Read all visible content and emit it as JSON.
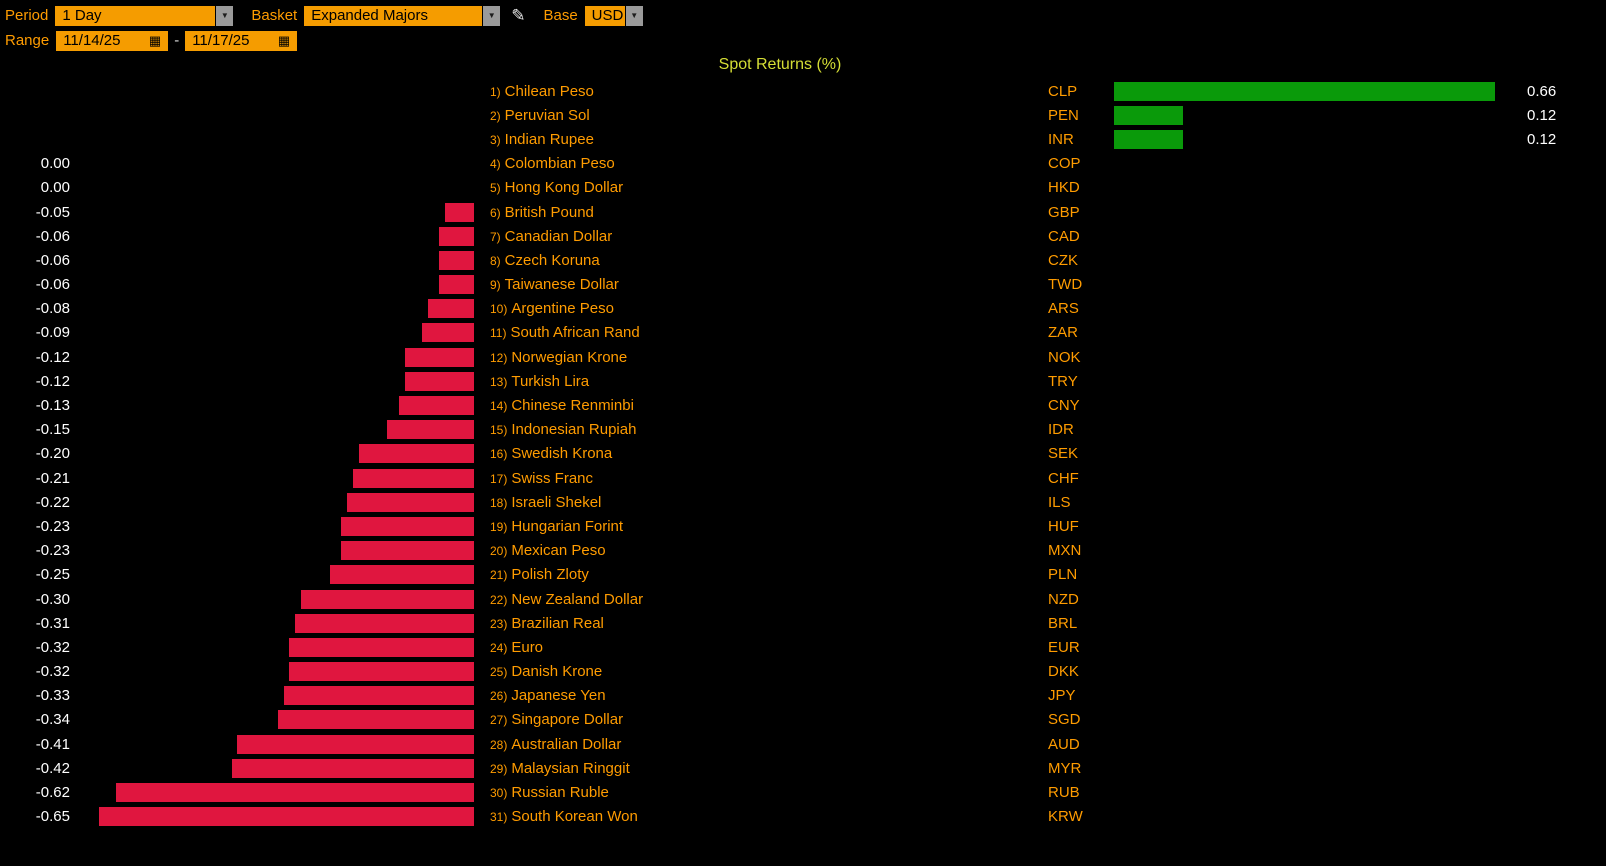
{
  "toolbar": {
    "period_label": "Period",
    "period_value": "1 Day",
    "basket_label": "Basket",
    "basket_value": "Expanded Majors",
    "base_label": "Base",
    "base_value": "USD",
    "range_label": "Range",
    "range_start": "11/14/25",
    "range_separator": "-",
    "range_end": "11/17/25"
  },
  "colors": {
    "background": "#000000",
    "amber_text": "#ff9c00",
    "field_background": "#f59c00",
    "title_text": "#d5de35",
    "value_text": "#ffffff",
    "negative_bar": "#e0163f",
    "positive_bar": "#0a9a0a"
  },
  "chart_data": {
    "type": "bar",
    "orientation": "horizontal",
    "title": "Spot Returns (%)",
    "value_unit": "%",
    "axis_max_abs": 0.7,
    "legend": "none",
    "grid": false,
    "rows": [
      {
        "rank": 1,
        "name": "Chilean Peso",
        "code": "CLP",
        "value": 0.66,
        "display": "0.66"
      },
      {
        "rank": 2,
        "name": "Peruvian Sol",
        "code": "PEN",
        "value": 0.12,
        "display": "0.12"
      },
      {
        "rank": 3,
        "name": "Indian Rupee",
        "code": "INR",
        "value": 0.12,
        "display": "0.12"
      },
      {
        "rank": 4,
        "name": "Colombian Peso",
        "code": "COP",
        "value": 0.0,
        "display": "0.00"
      },
      {
        "rank": 5,
        "name": "Hong Kong Dollar",
        "code": "HKD",
        "value": 0.0,
        "display": "0.00"
      },
      {
        "rank": 6,
        "name": "British Pound",
        "code": "GBP",
        "value": -0.05,
        "display": "-0.05"
      },
      {
        "rank": 7,
        "name": "Canadian Dollar",
        "code": "CAD",
        "value": -0.06,
        "display": "-0.06"
      },
      {
        "rank": 8,
        "name": "Czech Koruna",
        "code": "CZK",
        "value": -0.06,
        "display": "-0.06"
      },
      {
        "rank": 9,
        "name": "Taiwanese Dollar",
        "code": "TWD",
        "value": -0.06,
        "display": "-0.06"
      },
      {
        "rank": 10,
        "name": "Argentine Peso",
        "code": "ARS",
        "value": -0.08,
        "display": "-0.08"
      },
      {
        "rank": 11,
        "name": "South African Rand",
        "code": "ZAR",
        "value": -0.09,
        "display": "-0.09"
      },
      {
        "rank": 12,
        "name": "Norwegian Krone",
        "code": "NOK",
        "value": -0.12,
        "display": "-0.12"
      },
      {
        "rank": 13,
        "name": "Turkish Lira",
        "code": "TRY",
        "value": -0.12,
        "display": "-0.12"
      },
      {
        "rank": 14,
        "name": "Chinese Renminbi",
        "code": "CNY",
        "value": -0.13,
        "display": "-0.13"
      },
      {
        "rank": 15,
        "name": "Indonesian Rupiah",
        "code": "IDR",
        "value": -0.15,
        "display": "-0.15"
      },
      {
        "rank": 16,
        "name": "Swedish Krona",
        "code": "SEK",
        "value": -0.2,
        "display": "-0.20"
      },
      {
        "rank": 17,
        "name": "Swiss Franc",
        "code": "CHF",
        "value": -0.21,
        "display": "-0.21"
      },
      {
        "rank": 18,
        "name": "Israeli Shekel",
        "code": "ILS",
        "value": -0.22,
        "display": "-0.22"
      },
      {
        "rank": 19,
        "name": "Hungarian Forint",
        "code": "HUF",
        "value": -0.23,
        "display": "-0.23"
      },
      {
        "rank": 20,
        "name": "Mexican Peso",
        "code": "MXN",
        "value": -0.23,
        "display": "-0.23"
      },
      {
        "rank": 21,
        "name": "Polish Zloty",
        "code": "PLN",
        "value": -0.25,
        "display": "-0.25"
      },
      {
        "rank": 22,
        "name": "New Zealand Dollar",
        "code": "NZD",
        "value": -0.3,
        "display": "-0.30"
      },
      {
        "rank": 23,
        "name": "Brazilian Real",
        "code": "BRL",
        "value": -0.31,
        "display": "-0.31"
      },
      {
        "rank": 24,
        "name": "Euro",
        "code": "EUR",
        "value": -0.32,
        "display": "-0.32"
      },
      {
        "rank": 25,
        "name": "Danish Krone",
        "code": "DKK",
        "value": -0.32,
        "display": "-0.32"
      },
      {
        "rank": 26,
        "name": "Japanese Yen",
        "code": "JPY",
        "value": -0.33,
        "display": "-0.33"
      },
      {
        "rank": 27,
        "name": "Singapore Dollar",
        "code": "SGD",
        "value": -0.34,
        "display": "-0.34"
      },
      {
        "rank": 28,
        "name": "Australian Dollar",
        "code": "AUD",
        "value": -0.41,
        "display": "-0.41"
      },
      {
        "rank": 29,
        "name": "Malaysian Ringgit",
        "code": "MYR",
        "value": -0.42,
        "display": "-0.42"
      },
      {
        "rank": 30,
        "name": "Russian Ruble",
        "code": "RUB",
        "value": -0.62,
        "display": "-0.62"
      },
      {
        "rank": 31,
        "name": "South Korean Won",
        "code": "KRW",
        "value": -0.65,
        "display": "-0.65"
      }
    ]
  }
}
